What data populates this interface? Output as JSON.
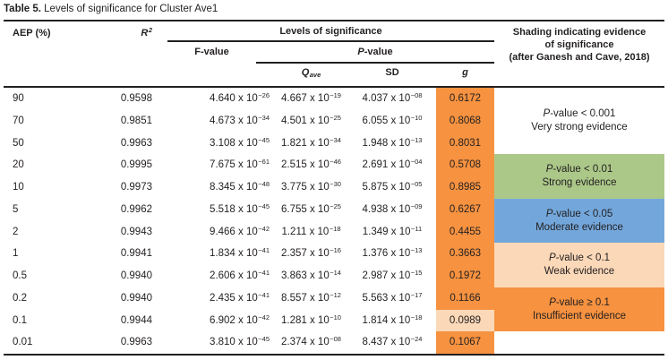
{
  "title": {
    "label": "Table 5.",
    "text": " Levels of significance for Cluster Ave1"
  },
  "header": {
    "aep": "AEP (%)",
    "r2": "R^2",
    "levels": "Levels of significance",
    "f": "F-value",
    "p": "P-value",
    "q": "Q~ave",
    "sd": "SD",
    "g": "g",
    "shading_line1": "Shading indicating evidence",
    "shading_line2": "of significance",
    "shading_line3": "(after Ganesh and Cave, 2018)"
  },
  "rows": [
    {
      "aep": "90",
      "r2": "0.9598",
      "f": "4.640 x 10^−26",
      "q": "4.667 x 10^−19",
      "sd": "4.037 x 10^−08",
      "g": "0.6172",
      "g_shade": "orange"
    },
    {
      "aep": "70",
      "r2": "0.9851",
      "f": "4.673 x 10^−34",
      "q": "4.501 x 10^−25",
      "sd": "6.055 x 10^−10",
      "g": "0.8068",
      "g_shade": "orange"
    },
    {
      "aep": "50",
      "r2": "0.9963",
      "f": "3.108 x 10^−45",
      "q": "1.821 x 10^−34",
      "sd": "1.948 x 10^−13",
      "g": "0.8031",
      "g_shade": "orange"
    },
    {
      "aep": "20",
      "r2": "0.9995",
      "f": "7.675 x 10^−61",
      "q": "2.515 x 10^−46",
      "sd": "2.691 x 10^−04",
      "g": "0.5708",
      "g_shade": "orange"
    },
    {
      "aep": "10",
      "r2": "0.9973",
      "f": "8.345 x 10^−48",
      "q": "3.775 x 10^−30",
      "sd": "5.875 x 10^−05",
      "g": "0.8985",
      "g_shade": "orange"
    },
    {
      "aep": "5",
      "r2": "0.9962",
      "f": "5.518 x 10^−45",
      "q": "6.755 x 10^−25",
      "sd": "4.938 x 10^−09",
      "g": "0.6267",
      "g_shade": "orange"
    },
    {
      "aep": "2",
      "r2": "0.9943",
      "f": "9.466 x 10^−42",
      "q": "1.211 x 10^−18",
      "sd": "1.349 x 10^−11",
      "g": "0.4455",
      "g_shade": "orange"
    },
    {
      "aep": "1",
      "r2": "0.9941",
      "f": "1.834 x 10^−41",
      "q": "2.357 x 10^−16",
      "sd": "1.376 x 10^−13",
      "g": "0.3663",
      "g_shade": "orange"
    },
    {
      "aep": "0.5",
      "r2": "0.9940",
      "f": "2.606 x 10^−41",
      "q": "3.863 x 10^−14",
      "sd": "2.987 x 10^−15",
      "g": "0.1972",
      "g_shade": "orange"
    },
    {
      "aep": "0.2",
      "r2": "0.9940",
      "f": "2.435 x 10^−41",
      "q": "8.557 x 10^−12",
      "sd": "5.563 x 10^−17",
      "g": "0.1166",
      "g_shade": "orange"
    },
    {
      "aep": "0.1",
      "r2": "0.9944",
      "f": "6.902 x 10^−42",
      "q": "1.281 x 10^−10",
      "sd": "1.814 x 10^−18",
      "g": "0.0989",
      "g_shade": "peach"
    },
    {
      "aep": "0.01",
      "r2": "0.9963",
      "f": "3.810 x 10^−45",
      "q": "2.374 x 10^−08",
      "sd": "8.437 x 10^−24",
      "g": "0.1067",
      "g_shade": "orange"
    }
  ],
  "legend": [
    {
      "shade": "none",
      "line1": "P-value < 0.001",
      "line2": "Very strong evidence"
    },
    {
      "shade": "green",
      "line1": "P-value < 0.01",
      "line2": "Strong evidence"
    },
    {
      "shade": "blue",
      "line1": "P-value < 0.05",
      "line2": "Moderate evidence"
    },
    {
      "shade": "peach",
      "line1": "P-value < 0.1",
      "line2": "Weak evidence"
    },
    {
      "shade": "orange",
      "line1": "P-value ≥ 0.1",
      "line2": "Insufficient evidence"
    },
    {
      "shade": "none",
      "line1": "",
      "line2": ""
    }
  ],
  "colors": {
    "orange": "#F69240",
    "peach": "#FBD8B8",
    "green": "#ABC889",
    "blue": "#73A7DB",
    "ink": "#231F20"
  }
}
